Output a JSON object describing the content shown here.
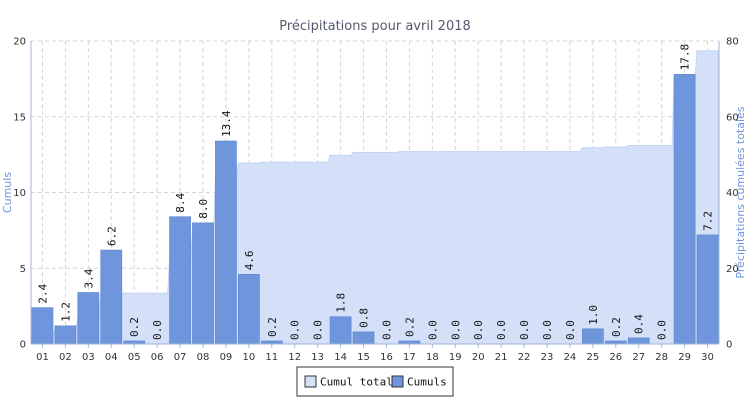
{
  "chart_data": {
    "type": "bar",
    "title": "Précipitations pour avril 2018",
    "ylabel_left": "Cumuls",
    "ylabel_right": "Précipitations cumulées totales",
    "categories": [
      "01",
      "02",
      "03",
      "04",
      "05",
      "06",
      "07",
      "08",
      "09",
      "10",
      "11",
      "12",
      "13",
      "14",
      "15",
      "16",
      "17",
      "18",
      "19",
      "20",
      "21",
      "22",
      "23",
      "24",
      "25",
      "26",
      "27",
      "28",
      "29",
      "30"
    ],
    "series": [
      {
        "name": "Cumuls",
        "type": "bar",
        "axis": "left",
        "color": "#6f96dc",
        "values": [
          2.4,
          1.2,
          3.4,
          6.2,
          0.2,
          0.0,
          8.4,
          8.0,
          13.4,
          4.6,
          0.2,
          0.0,
          0.0,
          1.8,
          0.8,
          0.0,
          0.2,
          0.0,
          0.0,
          0.0,
          0.0,
          0.0,
          0.0,
          0.0,
          1.0,
          0.2,
          0.4,
          0.0,
          17.8,
          7.2
        ],
        "labels": [
          "2.4",
          "1.2",
          "3.4",
          "6.2",
          "0.2",
          "0.0",
          "8.4",
          "8.0",
          "13.4",
          "4.6",
          "0.2",
          "0.0",
          "0.0",
          "1.8",
          "0.8",
          "0.0",
          "0.2",
          "0.0",
          "0.0",
          "0.0",
          "0.0",
          "0.0",
          "0.0",
          "0.0",
          "1.0",
          "0.2",
          "0.4",
          "0.0",
          "17.8",
          "7.2"
        ]
      },
      {
        "name": "Cumul total",
        "type": "area",
        "axis": "right",
        "color": "#d3e0f8",
        "values": [
          2.4,
          3.6,
          7.0,
          13.2,
          13.4,
          13.4,
          21.8,
          29.8,
          43.2,
          47.8,
          48.0,
          48.0,
          48.0,
          49.8,
          50.6,
          50.6,
          50.8,
          50.8,
          50.8,
          50.8,
          50.8,
          50.8,
          50.8,
          50.8,
          51.8,
          52.0,
          52.4,
          52.4,
          70.2,
          77.4
        ]
      }
    ],
    "ylim_left": [
      0,
      20
    ],
    "yticks_left": [
      "0",
      "5",
      "10",
      "15",
      "20"
    ],
    "ylim_right": [
      0,
      80
    ],
    "yticks_right": [
      "0",
      "20",
      "40",
      "60",
      "80"
    ],
    "grid": true,
    "legend": {
      "position": "bottom-center",
      "items": [
        "Cumul total",
        "Cumuls"
      ]
    },
    "colors": {
      "axis_label": "#6f96dc",
      "grid": "#d6d6d6",
      "axis": "#9fb6d9"
    }
  }
}
